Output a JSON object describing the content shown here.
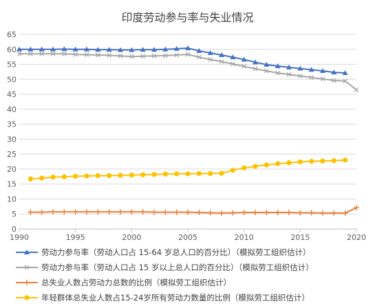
{
  "chart_data": {
    "type": "line",
    "title": "印度劳动参与率与失业情况",
    "xlim": [
      1990,
      2020
    ],
    "ylim": [
      0,
      65
    ],
    "x_ticks": [
      "1990",
      "1995",
      "2000",
      "2005",
      "2010",
      "2015",
      "2020"
    ],
    "y_ticks": [
      "0",
      "5",
      "10",
      "15",
      "20",
      "25",
      "30",
      "35",
      "40",
      "45",
      "50",
      "55",
      "60",
      "65"
    ],
    "grid": true,
    "legend_position": "bottom",
    "series": [
      {
        "name": "劳动力参与率（劳动人口占 15-64 岁总人口的百分比）（模拟劳工组织估计）",
        "color": "#4472c4",
        "marker": "triangle",
        "x": [
          1990,
          1991,
          1992,
          1993,
          1994,
          1995,
          1996,
          1997,
          1998,
          1999,
          2000,
          2001,
          2002,
          2003,
          2004,
          2005,
          2006,
          2007,
          2008,
          2009,
          2010,
          2011,
          2012,
          2013,
          2014,
          2015,
          2016,
          2017,
          2018,
          2019
        ],
        "values": [
          60.0,
          60.0,
          60.0,
          60.0,
          60.1,
          60.0,
          60.0,
          59.9,
          59.9,
          59.8,
          59.8,
          59.9,
          59.9,
          60.0,
          60.2,
          60.4,
          59.5,
          58.8,
          58.1,
          57.4,
          56.6,
          55.7,
          54.9,
          54.4,
          54.0,
          53.6,
          53.2,
          52.8,
          52.3,
          52.1
        ]
      },
      {
        "name": "劳动力参与率（劳动人口占 15 岁以上总人口的百分比）（模拟劳工组织估计）",
        "color": "#a5a5a5",
        "marker": "x",
        "x": [
          1990,
          1991,
          1992,
          1993,
          1994,
          1995,
          1996,
          1997,
          1998,
          1999,
          2000,
          2001,
          2002,
          2003,
          2004,
          2005,
          2006,
          2007,
          2008,
          2009,
          2010,
          2011,
          2012,
          2013,
          2014,
          2015,
          2016,
          2017,
          2018,
          2019,
          2020
        ],
        "values": [
          58.5,
          58.5,
          58.5,
          58.5,
          58.5,
          58.3,
          58.2,
          58.1,
          58.0,
          57.8,
          57.6,
          57.7,
          57.8,
          57.9,
          58.1,
          58.3,
          57.4,
          56.6,
          55.9,
          55.1,
          54.3,
          53.5,
          52.8,
          52.1,
          51.6,
          51.1,
          50.6,
          50.1,
          49.6,
          49.4,
          46.5
        ]
      },
      {
        "name": "总失业人数占劳动力总数的比例（模拟劳工组织估计）",
        "color": "#ed7d31",
        "marker": "plus",
        "x": [
          1991,
          1992,
          1993,
          1994,
          1995,
          1996,
          1997,
          1998,
          1999,
          2000,
          2001,
          2002,
          2003,
          2004,
          2005,
          2006,
          2007,
          2008,
          2009,
          2010,
          2011,
          2012,
          2013,
          2014,
          2015,
          2016,
          2017,
          2018,
          2019,
          2020
        ],
        "values": [
          5.6,
          5.6,
          5.7,
          5.7,
          5.7,
          5.7,
          5.7,
          5.7,
          5.7,
          5.7,
          5.7,
          5.6,
          5.6,
          5.6,
          5.6,
          5.5,
          5.4,
          5.3,
          5.4,
          5.5,
          5.5,
          5.5,
          5.5,
          5.5,
          5.4,
          5.4,
          5.3,
          5.3,
          5.3,
          7.1
        ]
      },
      {
        "name": "年轻群体总失业人数占15-24岁所有劳动力数量的比例（模拟劳工组织估计）",
        "color": "#ffc000",
        "marker": "circle",
        "x": [
          1991,
          1992,
          1993,
          1994,
          1995,
          1996,
          1997,
          1998,
          1999,
          2000,
          2001,
          2002,
          2003,
          2004,
          2005,
          2006,
          2007,
          2008,
          2009,
          2010,
          2011,
          2012,
          2013,
          2014,
          2015,
          2016,
          2017,
          2018,
          2019
        ],
        "values": [
          16.7,
          17.0,
          17.3,
          17.4,
          17.6,
          17.7,
          17.8,
          17.8,
          17.9,
          18.0,
          18.1,
          18.2,
          18.3,
          18.4,
          18.4,
          18.5,
          18.5,
          18.6,
          19.6,
          20.4,
          20.9,
          21.4,
          21.8,
          22.1,
          22.4,
          22.6,
          22.7,
          22.8,
          23.0
        ]
      }
    ]
  }
}
